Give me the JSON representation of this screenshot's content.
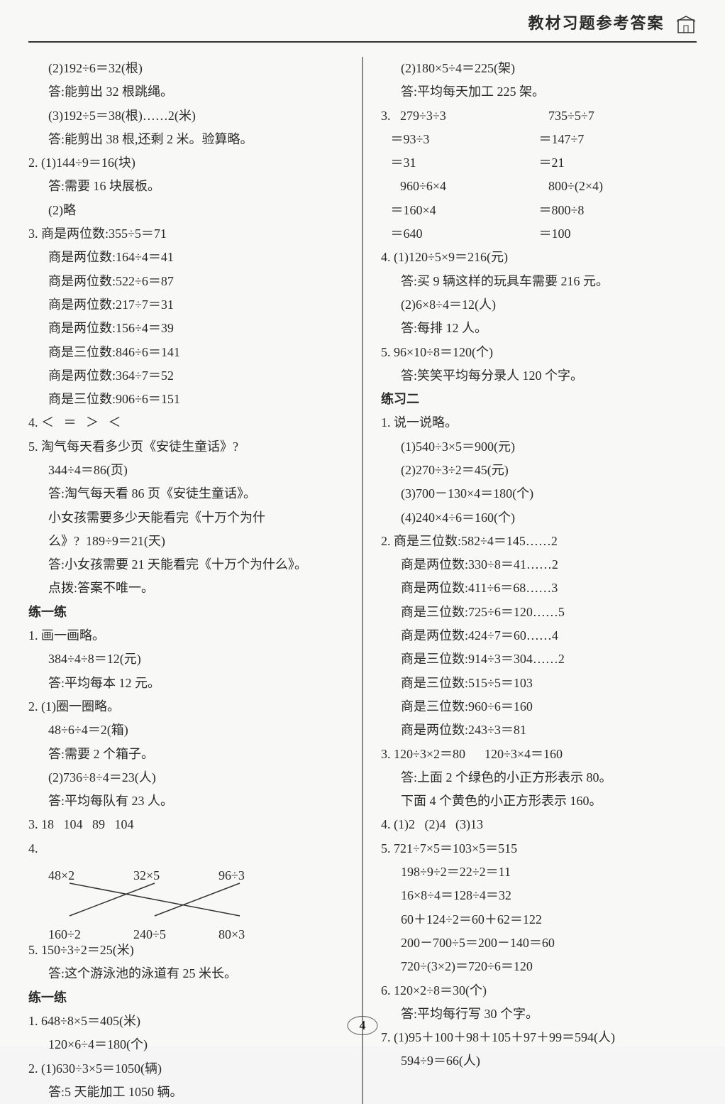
{
  "header": {
    "title": "教材习题参考答案"
  },
  "left_column": [
    {
      "text": "(2)192÷6＝32(根)",
      "indent": 1
    },
    {
      "text": "答:能剪出 32 根跳绳。",
      "indent": 1
    },
    {
      "text": "(3)192÷5＝38(根)……2(米)",
      "indent": 1
    },
    {
      "text": "答:能剪出 38 根,还剩 2 米。验算略。",
      "indent": 1
    },
    {
      "text": "2. (1)144÷9＝16(块)",
      "indent": 0
    },
    {
      "text": "答:需要 16 块展板。",
      "indent": 1
    },
    {
      "text": "(2)略",
      "indent": 1
    },
    {
      "text": "3. 商是两位数:355÷5＝71",
      "indent": 0
    },
    {
      "text": "商是两位数:164÷4＝41",
      "indent": 1
    },
    {
      "text": "商是两位数:522÷6＝87",
      "indent": 1
    },
    {
      "text": "商是两位数:217÷7＝31",
      "indent": 1
    },
    {
      "text": "商是两位数:156÷4＝39",
      "indent": 1
    },
    {
      "text": "商是三位数:846÷6＝141",
      "indent": 1
    },
    {
      "text": "商是两位数:364÷7＝52",
      "indent": 1
    },
    {
      "text": "商是三位数:906÷6＝151",
      "indent": 1
    },
    {
      "text": "4. ＜   ＝   ＞   ＜",
      "indent": 0
    },
    {
      "text": "5. 淘气每天看多少页《安徒生童话》?",
      "indent": 0
    },
    {
      "text": "344÷4＝86(页)",
      "indent": 1
    },
    {
      "text": "答:淘气每天看 86 页《安徒生童话》。",
      "indent": 1
    },
    {
      "text": "小女孩需要多少天能看完《十万个为什",
      "indent": 1
    },
    {
      "text": "么》?  189÷9＝21(天)",
      "indent": 1
    },
    {
      "text": "答:小女孩需要 21 天能看完《十万个为什么》。",
      "indent": 1
    },
    {
      "text": "点拨:答案不唯一。",
      "indent": 1
    },
    {
      "text": "练一练",
      "indent": 0,
      "bold": true
    },
    {
      "text": "1. 画一画略。",
      "indent": 0
    },
    {
      "text": "384÷4÷8＝12(元)",
      "indent": 1
    },
    {
      "text": "答:平均每本 12 元。",
      "indent": 1
    },
    {
      "text": "2. (1)圈一圈略。",
      "indent": 0
    },
    {
      "text": "48÷6÷4＝2(箱)",
      "indent": 1
    },
    {
      "text": "答:需要 2 个箱子。",
      "indent": 1
    },
    {
      "text": "(2)736÷8÷4＝23(人)",
      "indent": 1
    },
    {
      "text": "答:平均每队有 23 人。",
      "indent": 1
    },
    {
      "text": "3. 18   104   89   104",
      "indent": 0
    },
    {
      "text": "4.",
      "indent": 0
    },
    {
      "type": "match"
    },
    {
      "text": "5. 150÷3÷2＝25(米)",
      "indent": 0
    },
    {
      "text": "答:这个游泳池的泳道有 25 米长。",
      "indent": 1
    },
    {
      "text": "练一练",
      "indent": 0,
      "bold": true
    },
    {
      "text": "1. 648÷8×5＝405(米)",
      "indent": 0
    },
    {
      "text": "120×6÷4＝180(个)",
      "indent": 1
    },
    {
      "text": "2. (1)630÷3×5＝1050(辆)",
      "indent": 0
    },
    {
      "text": "答:5 天能加工 1050 辆。",
      "indent": 1
    }
  ],
  "match_diagram": {
    "top_row": [
      "48×2",
      "32×5",
      "96÷3"
    ],
    "bottom_row": [
      "160÷2",
      "240÷5",
      "80×3"
    ],
    "connections": [
      {
        "from": 0,
        "to": 2
      },
      {
        "from": 1,
        "to": 0
      },
      {
        "from": 2,
        "to": 1
      }
    ],
    "line_color": "#333",
    "line_width": 1.5
  },
  "right_column": [
    {
      "text": "(2)180×5÷4＝225(架)",
      "indent": 1
    },
    {
      "text": "答:平均每天加工 225 架。",
      "indent": 1
    },
    {
      "type": "two-col",
      "left": [
        "3.   279÷3÷3",
        "   ＝93÷3",
        "   ＝31",
        "      960÷6×4",
        "   ＝160×4",
        "   ＝640"
      ],
      "right": [
        "   735÷5÷7",
        "＝147÷7",
        "＝21",
        "   800÷(2×4)",
        "＝800÷8",
        "＝100"
      ]
    },
    {
      "text": "4. (1)120÷5×9＝216(元)",
      "indent": 0
    },
    {
      "text": "答:买 9 辆这样的玩具车需要 216 元。",
      "indent": 1
    },
    {
      "text": "(2)6×8÷4＝12(人)",
      "indent": 1
    },
    {
      "text": "答:每排 12 人。",
      "indent": 1
    },
    {
      "text": "5. 96×10÷8＝120(个)",
      "indent": 0
    },
    {
      "text": "答:笑笑平均每分录人 120 个字。",
      "indent": 1
    },
    {
      "text": "练习二",
      "indent": 0,
      "bold": true
    },
    {
      "text": "1. 说一说略。",
      "indent": 0
    },
    {
      "text": "(1)540÷3×5＝900(元)",
      "indent": 1
    },
    {
      "text": "(2)270÷3÷2＝45(元)",
      "indent": 1
    },
    {
      "text": "(3)700－130×4＝180(个)",
      "indent": 1
    },
    {
      "text": "(4)240×4÷6＝160(个)",
      "indent": 1
    },
    {
      "text": "2. 商是三位数:582÷4＝145……2",
      "indent": 0
    },
    {
      "text": "商是两位数:330÷8＝41……2",
      "indent": 1
    },
    {
      "text": "商是两位数:411÷6＝68……3",
      "indent": 1
    },
    {
      "text": "商是三位数:725÷6＝120……5",
      "indent": 1
    },
    {
      "text": "商是两位数:424÷7＝60……4",
      "indent": 1
    },
    {
      "text": "商是三位数:914÷3＝304……2",
      "indent": 1
    },
    {
      "text": "商是三位数:515÷5＝103",
      "indent": 1
    },
    {
      "text": "商是三位数:960÷6＝160",
      "indent": 1
    },
    {
      "text": "商是两位数:243÷3＝81",
      "indent": 1
    },
    {
      "text": "3. 120÷3×2＝80      120÷3×4＝160",
      "indent": 0
    },
    {
      "text": "答:上面 2 个绿色的小正方形表示 80。",
      "indent": 1
    },
    {
      "text": "下面 4 个黄色的小正方形表示 160。",
      "indent": 1
    },
    {
      "text": "4. (1)2   (2)4   (3)13",
      "indent": 0
    },
    {
      "text": "5. 721÷7×5＝103×5＝515",
      "indent": 0
    },
    {
      "text": "198÷9÷2＝22÷2＝11",
      "indent": 1
    },
    {
      "text": "16×8÷4＝128÷4＝32",
      "indent": 1
    },
    {
      "text": "60＋124÷2＝60＋62＝122",
      "indent": 1
    },
    {
      "text": "200－700÷5＝200－140＝60",
      "indent": 1
    },
    {
      "text": "720÷(3×2)＝720÷6＝120",
      "indent": 1
    },
    {
      "text": "6. 120×2÷8＝30(个)",
      "indent": 0
    },
    {
      "text": "答:平均每行写 30 个字。",
      "indent": 1
    },
    {
      "text": "7. (1)95＋100＋98＋105＋97＋99＝594(人)",
      "indent": 0
    },
    {
      "text": "594÷9＝66(人)",
      "indent": 1
    }
  ],
  "page_number": "4",
  "colors": {
    "text": "#2a2a2a",
    "background": "#f8f8f6",
    "divider": "#888",
    "border": "#333"
  }
}
